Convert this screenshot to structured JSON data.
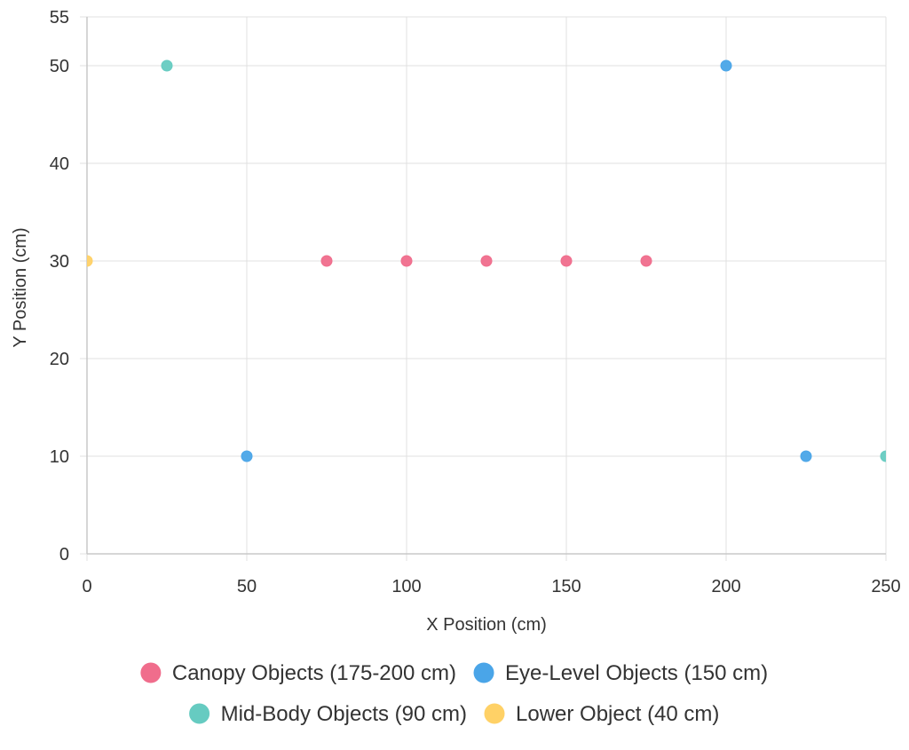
{
  "chart_data": {
    "type": "scatter",
    "xlabel": "X Position (cm)",
    "ylabel": "Y Position (cm)",
    "xlim": [
      0,
      250
    ],
    "ylim": [
      0,
      55
    ],
    "x_ticks": [
      0,
      50,
      100,
      150,
      200,
      250
    ],
    "y_ticks": [
      0,
      10,
      20,
      30,
      40,
      50,
      55
    ],
    "grid": true,
    "legend_position": "bottom",
    "series": [
      {
        "name": "Canopy Objects (175-200 cm)",
        "color": "#f06d8c",
        "points": [
          {
            "x": 75,
            "y": 30
          },
          {
            "x": 100,
            "y": 30
          },
          {
            "x": 125,
            "y": 30
          },
          {
            "x": 150,
            "y": 30
          },
          {
            "x": 175,
            "y": 30
          }
        ]
      },
      {
        "name": "Eye-Level Objects (150 cm)",
        "color": "#4aa5e8",
        "points": [
          {
            "x": 50,
            "y": 10
          },
          {
            "x": 200,
            "y": 50
          },
          {
            "x": 225,
            "y": 10
          }
        ]
      },
      {
        "name": "Mid-Body Objects (90 cm)",
        "color": "#66cbc1",
        "points": [
          {
            "x": 25,
            "y": 50
          },
          {
            "x": 250,
            "y": 10
          }
        ]
      },
      {
        "name": "Lower Object (40 cm)",
        "color": "#ffd166",
        "points": [
          {
            "x": 0,
            "y": 30
          }
        ]
      }
    ]
  }
}
